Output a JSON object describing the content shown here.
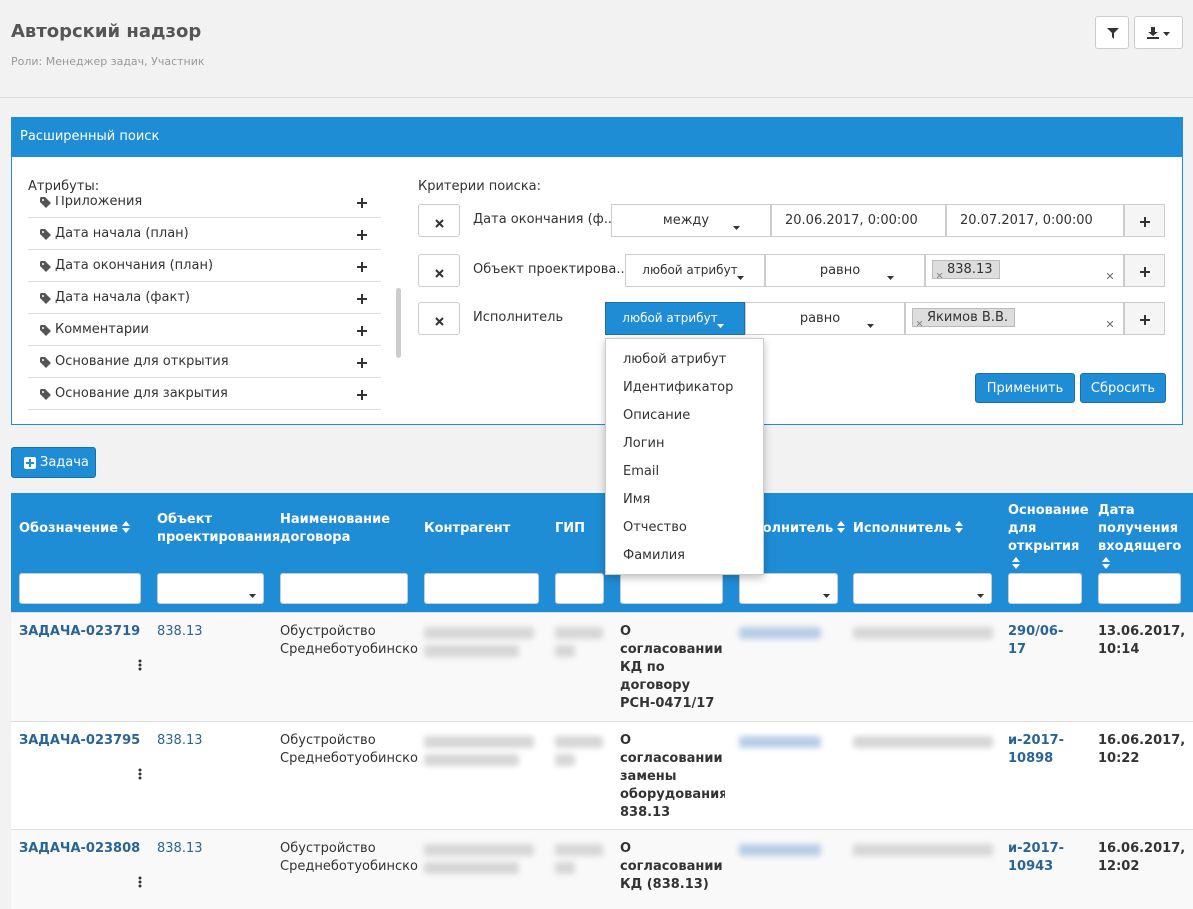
{
  "header": {
    "title": "Авторский надзор",
    "roles": "Роли: Менеджер задач, Участник"
  },
  "search": {
    "title": "Расширенный поиск",
    "attributes_label": "Атрибуты:",
    "attributes": [
      "Приложения",
      "Дата начала (план)",
      "Дата окончания (план)",
      "Дата начала (факт)",
      "Комментарии",
      "Основание для открытия",
      "Основание для закрытия"
    ],
    "criteria_label": "Критерии поиска:",
    "criteria": [
      {
        "field": "Дата окончания (ф...",
        "operator": "между",
        "from": "20.06.2017, 0:00:00",
        "to": "20.07.2017, 0:00:00"
      },
      {
        "field": "Объект проектирова...",
        "attribute": "любой атрибут",
        "operator": "равно",
        "tag": "838.13"
      },
      {
        "field": "Исполнитель",
        "attribute": "любой атрибут",
        "operator": "равно",
        "tag": "Якимов В.В."
      }
    ],
    "dropdown": [
      "любой атрибут",
      "Идентификатор",
      "Описание",
      "Логин",
      "Email",
      "Имя",
      "Отчество",
      "Фамилия"
    ],
    "apply": "Применить",
    "reset": "Сбросить"
  },
  "add_task": "Задача",
  "table": {
    "columns": [
      "Обозначение",
      "Объект проектирования",
      "Наименование договора",
      "Контрагент",
      "ГИП",
      "Исполнитель",
      "Исполнитель",
      "Основание для открытия",
      "Дата получения входящего"
    ],
    "rows": [
      [
        "ЗАДАЧА-023719",
        "838.13",
        "Обустройство Среднеботуобинско",
        "О согласовании КД по договору РСН-0471/17",
        "290/06-17",
        "13.06.2017, 10:14"
      ],
      [
        "ЗАДАЧА-023795",
        "838.13",
        "Обустройство Среднеботуобинско",
        "О согласовании замены оборудования 838.13",
        "и-2017-10898",
        "16.06.2017, 10:22"
      ],
      [
        "ЗАДАЧА-023808",
        "838.13",
        "Обустройство Среднеботуобинско",
        "О согласовании КД (838.13)",
        "и-2017-10943",
        "16.06.2017, 12:02"
      ]
    ]
  }
}
